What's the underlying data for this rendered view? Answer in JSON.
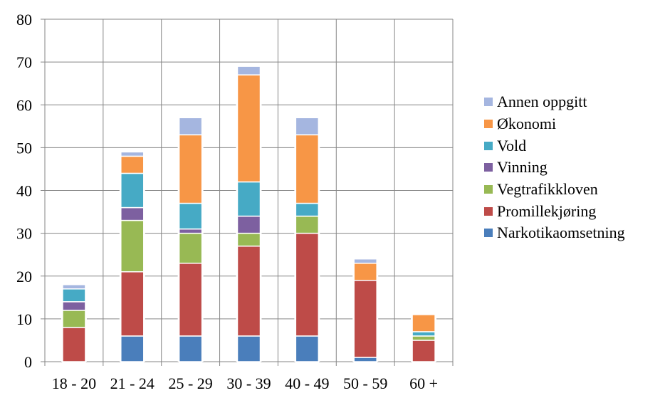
{
  "chart_data": {
    "type": "bar",
    "stacked": true,
    "title": "",
    "xlabel": "",
    "ylabel": "",
    "ylim": [
      0,
      80
    ],
    "yticks": [
      0,
      10,
      20,
      30,
      40,
      50,
      60,
      70,
      80
    ],
    "grid": true,
    "legend_position": "right",
    "categories": [
      "18 - 20",
      "21 - 24",
      "25 - 29",
      "30 - 39",
      "40 - 49",
      "50 - 59",
      "60 +"
    ],
    "series": [
      {
        "name": "Narkotikaomsetning",
        "color": "#4a7ebb",
        "values": [
          0,
          6,
          6,
          6,
          6,
          1,
          0
        ]
      },
      {
        "name": "Promillekjøring",
        "color": "#be4b48",
        "values": [
          8,
          15,
          17,
          21,
          24,
          18,
          5
        ]
      },
      {
        "name": "Vegtrafikkloven",
        "color": "#98b954",
        "values": [
          4,
          12,
          7,
          3,
          4,
          0,
          1
        ]
      },
      {
        "name": "Vinning",
        "color": "#7d60a0",
        "values": [
          2,
          3,
          1,
          4,
          0,
          0,
          0
        ]
      },
      {
        "name": "Vold",
        "color": "#46aac5",
        "values": [
          3,
          8,
          6,
          8,
          3,
          0,
          1
        ]
      },
      {
        "name": "Økonomi",
        "color": "#f79646",
        "values": [
          0,
          4,
          16,
          25,
          16,
          4,
          4
        ]
      },
      {
        "name": "Annen oppgitt",
        "color": "#a5b6e0",
        "values": [
          1,
          1,
          4,
          2,
          4,
          1,
          0
        ]
      }
    ]
  }
}
